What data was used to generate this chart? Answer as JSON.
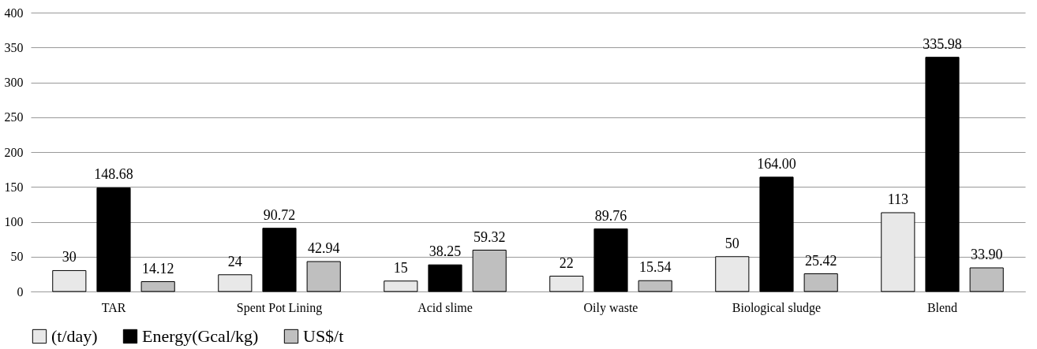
{
  "chart_data": {
    "type": "bar",
    "categories": [
      "TAR",
      "Spent Pot Lining",
      "Acid slime",
      "Oily waste",
      "Biological sludge",
      "Blend"
    ],
    "series": [
      {
        "name": "(t/day)",
        "color": "#e8e8e8",
        "values": [
          30,
          24,
          15,
          22,
          50,
          113
        ],
        "value_labels": [
          "30",
          "24",
          "15",
          "22",
          "50",
          "113"
        ]
      },
      {
        "name": "Energy(Gcal/kg)",
        "color": "#000000",
        "values": [
          148.68,
          90.72,
          38.25,
          89.76,
          164.0,
          335.98
        ],
        "value_labels": [
          "148.68",
          "90.72",
          "38.25",
          "89.76",
          "164.00",
          "335.98"
        ]
      },
      {
        "name": "US$/t",
        "color": "#bfbfbf",
        "values": [
          14.12,
          42.94,
          59.32,
          15.54,
          25.42,
          33.9
        ],
        "value_labels": [
          "14.12",
          "42.94",
          "59.32",
          "15.54",
          "25.42",
          "33.90"
        ]
      }
    ],
    "ylim": [
      0,
      400
    ],
    "yticks": [
      0,
      50,
      100,
      150,
      200,
      250,
      300,
      350,
      400
    ],
    "grid": "y",
    "legend": "bottom"
  }
}
